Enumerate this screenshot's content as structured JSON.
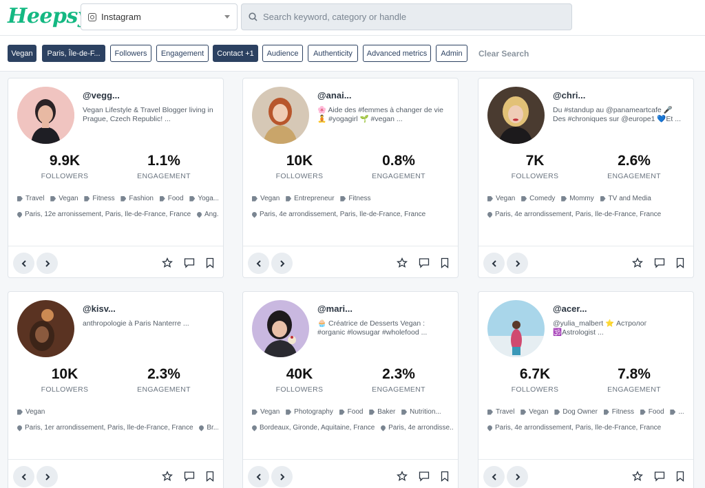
{
  "app": {
    "logo": "Heepsy"
  },
  "header": {
    "platform": "Instagram",
    "search_placeholder": "Search keyword, category or handle"
  },
  "filters": {
    "chips": [
      {
        "label": "Vegan",
        "active": true
      },
      {
        "label": "Paris, Île-de-F...",
        "active": true
      },
      {
        "label": "Followers",
        "active": false
      },
      {
        "label": "Engagement",
        "active": false
      },
      {
        "label": "Contact +1",
        "active": true
      },
      {
        "label": "Audience",
        "active": false
      },
      {
        "label": "Authenticity",
        "active": false
      },
      {
        "label": "Advanced metrics",
        "active": false
      },
      {
        "label": "Admin",
        "active": false
      }
    ],
    "clear_label": "Clear Search"
  },
  "labels": {
    "followers": "FOLLOWERS",
    "engagement": "ENGAGEMENT"
  },
  "cards": [
    {
      "handle": "@vegg...",
      "bio": "Vegan Lifestyle & Travel Blogger living in Prague, Czech Republic! ...",
      "followers": "9.9K",
      "engagement": "1.1%",
      "tags": [
        "Travel",
        "Vegan",
        "Fitness",
        "Fashion",
        "Food",
        "Yoga..."
      ],
      "locations": [
        "Paris, 12e arronissement, Paris, Île-de-France, France",
        "Ang..."
      ]
    },
    {
      "handle": "@anai...",
      "bio": "🌸 Aide des #femmes à changer de vie 🧘 #yogagirl 🌱 #vegan ...",
      "followers": "10K",
      "engagement": "0.8%",
      "tags": [
        "Vegan",
        "Entrepreneur",
        "Fitness"
      ],
      "locations": [
        "Paris, 4e arrondissement, Paris, Île-de-France, France"
      ]
    },
    {
      "handle": "@chri...",
      "bio": "Du #standup au @panameartcafe 🎤 Des #chroniques sur @europe1 💙Et ...",
      "followers": "7K",
      "engagement": "2.6%",
      "tags": [
        "Vegan",
        "Comedy",
        "Mommy",
        "TV and Media"
      ],
      "locations": [
        "Paris, 4e arrondissement, Paris, Île-de-France, France"
      ]
    },
    {
      "handle": "@kisv...",
      "bio": "anthropologie à Paris Nanterre ...",
      "followers": "10K",
      "engagement": "2.3%",
      "tags": [
        "Vegan"
      ],
      "locations": [
        "Paris, 1er arrondissement, Paris, Île-de-France, France",
        "Br..."
      ]
    },
    {
      "handle": "@mari...",
      "bio": "🧁 Créatrice de Desserts Vegan : #organic #lowsugar #wholefood ...",
      "followers": "40K",
      "engagement": "2.3%",
      "tags": [
        "Vegan",
        "Photography",
        "Food",
        "Baker",
        "Nutrition..."
      ],
      "locations": [
        "Bordeaux, Gironde, Aquitaine, France",
        "Paris, 4e arrondisse..."
      ]
    },
    {
      "handle": "@acer...",
      "bio": "@yulia_malbert ⭐ Астролог 🕉️Astrologist ...",
      "followers": "6.7K",
      "engagement": "7.8%",
      "tags": [
        "Travel",
        "Vegan",
        "Dog Owner",
        "Fitness",
        "Food",
        "..."
      ],
      "locations": [
        "Paris, 4e arrondissement, Paris, Île-de-France, France"
      ]
    }
  ]
}
